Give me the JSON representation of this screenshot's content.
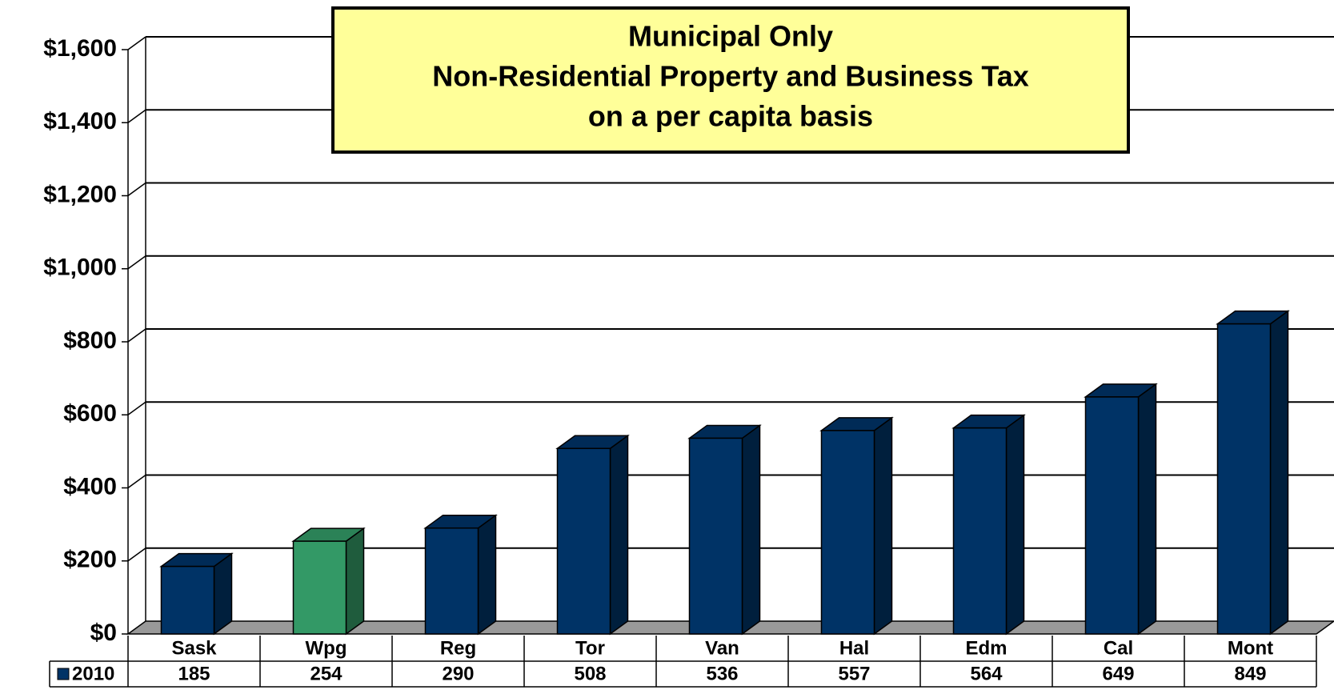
{
  "chart_data": {
    "type": "bar3d",
    "title": [
      "Municipal Only",
      "Non-Residential Property and Business Tax",
      "on a per capita basis"
    ],
    "categories": [
      "Sask",
      "Wpg",
      "Reg",
      "Tor",
      "Van",
      "Hal",
      "Edm",
      "Cal",
      "Mont"
    ],
    "series": [
      {
        "name": "2010",
        "color": "#003366",
        "point_colors": [
          "#003366",
          "#339966",
          "#003366",
          "#003366",
          "#003366",
          "#003366",
          "#003366",
          "#003366",
          "#003366"
        ],
        "values": [
          185,
          254,
          290,
          508,
          536,
          557,
          564,
          649,
          849
        ]
      }
    ],
    "ylim": [
      0,
      1600
    ],
    "yticks": [
      {
        "value": 0,
        "label": "$0"
      },
      {
        "value": 200,
        "label": "$200"
      },
      {
        "value": 400,
        "label": "$400"
      },
      {
        "value": 600,
        "label": "$600"
      },
      {
        "value": 800,
        "label": "$800"
      },
      {
        "value": 1000,
        "label": "$1,000"
      },
      {
        "value": 1200,
        "label": "$1,200"
      },
      {
        "value": 1400,
        "label": "$1,400"
      },
      {
        "value": 1600,
        "label": "$1,600"
      }
    ],
    "grid": true,
    "data_table": true
  }
}
